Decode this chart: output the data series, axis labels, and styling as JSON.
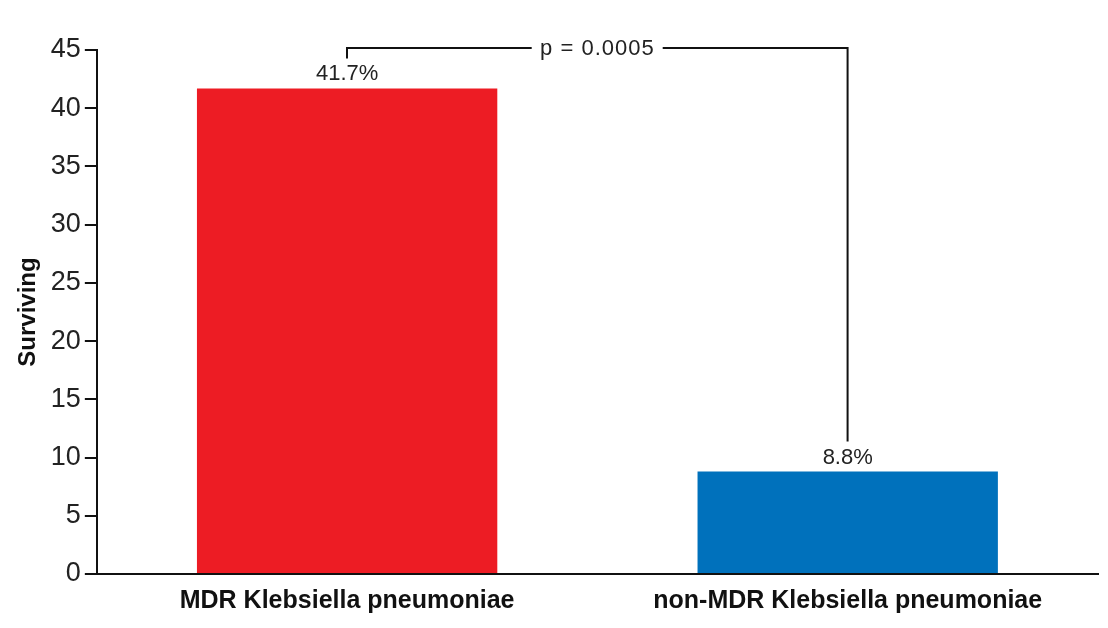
{
  "chart_data": {
    "type": "bar",
    "ylabel": "Surviving",
    "categories": [
      "MDR Klebsiella pneumoniae",
      "non-MDR Klebsiella pneumoniae"
    ],
    "values": [
      41.7,
      8.8
    ],
    "colors": [
      "#ed1c24",
      "#0071bc"
    ],
    "value_labels": [
      "41.7%",
      "8.8%"
    ],
    "ylim": [
      0,
      45
    ],
    "yticks": [
      0,
      5,
      10,
      15,
      20,
      25,
      30,
      35,
      40,
      45
    ],
    "grid": false,
    "legend": false,
    "annotations": [
      "p = 0.0005"
    ]
  }
}
